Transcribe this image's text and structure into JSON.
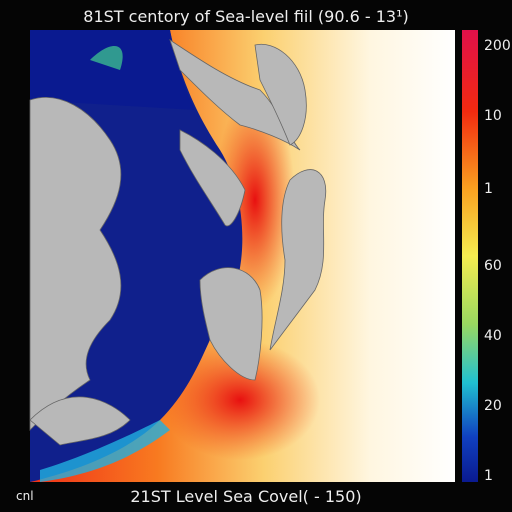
{
  "header": {
    "title": "81ST centory of Sea-level fiil (90.6 - 13¹)"
  },
  "footer": {
    "caption": "21ST Level Sea Covel( - 150)",
    "corner": "cnl"
  },
  "legend": {
    "ticks": [
      "200",
      "10",
      "1",
      "60",
      "40",
      "20",
      "1"
    ]
  }
}
